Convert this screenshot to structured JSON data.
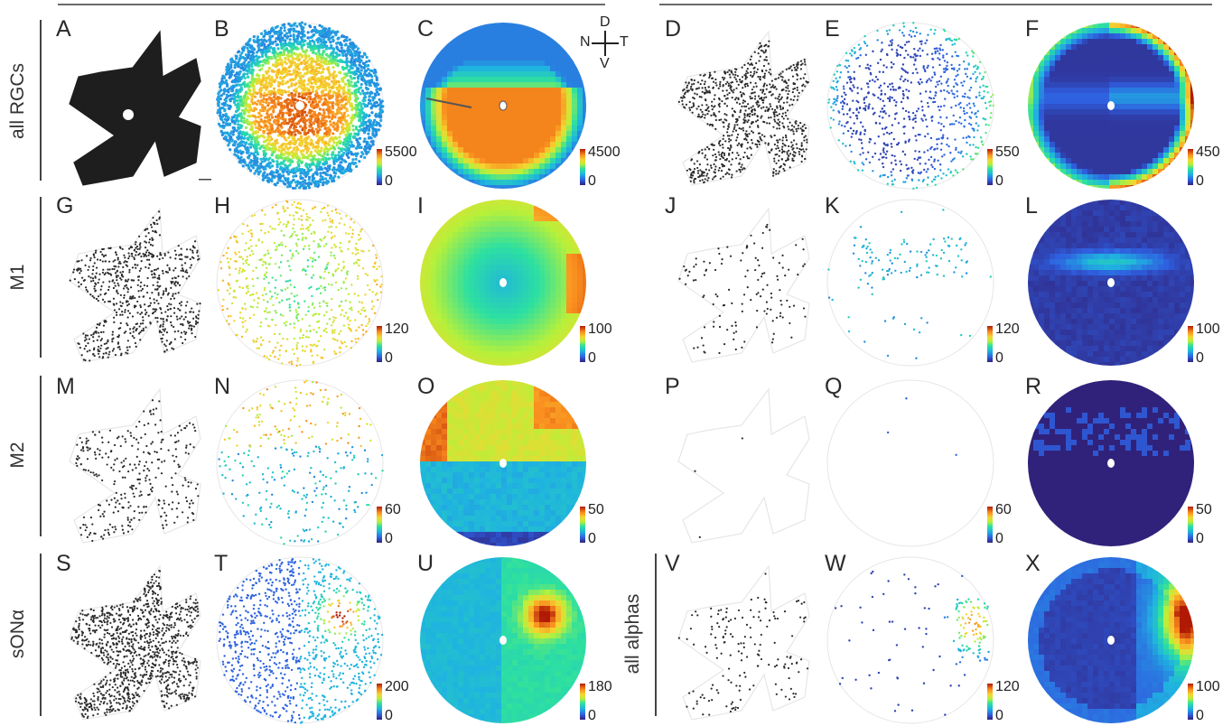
{
  "figure": {
    "row_labels": [
      "all RGCs",
      "M1",
      "M2",
      "sONα"
    ],
    "right_row_label": "all alphas",
    "compass": {
      "dorsal": "D",
      "nasal": "N",
      "temporal": "T",
      "ventral": "V"
    }
  },
  "colors": {
    "line": "#6a6a6a",
    "dot": "#2b2b2b",
    "outline": "#e6e6e6",
    "jet_low": "#30227a",
    "jet_high": "#b01a05"
  },
  "chart_data": [
    {
      "panel": "A",
      "row": "all RGCs",
      "type": "scatter",
      "kind": "retina-flatmount-dots",
      "density": "very high"
    },
    {
      "panel": "B",
      "row": "all RGCs",
      "type": "scatter",
      "kind": "colored-dot-disc",
      "colorbar": {
        "min": "0",
        "max": "5500"
      }
    },
    {
      "panel": "C",
      "row": "all RGCs",
      "type": "heatmap",
      "kind": "density-disc",
      "colorbar": {
        "min": "0",
        "max": "4500"
      }
    },
    {
      "panel": "D",
      "row": "all RGCs",
      "type": "scatter",
      "kind": "retina-flatmount-dots",
      "density": "medium"
    },
    {
      "panel": "E",
      "row": "all RGCs",
      "type": "scatter",
      "kind": "colored-dot-disc",
      "colorbar": {
        "min": "0",
        "max": "550"
      }
    },
    {
      "panel": "F",
      "row": "all RGCs",
      "type": "heatmap",
      "kind": "density-disc",
      "colorbar": {
        "min": "0",
        "max": "450"
      }
    },
    {
      "panel": "G",
      "row": "M1",
      "type": "scatter",
      "kind": "retina-flatmount-dots",
      "density": "medium"
    },
    {
      "panel": "H",
      "row": "M1",
      "type": "scatter",
      "kind": "colored-dot-disc",
      "colorbar": {
        "min": "0",
        "max": "120"
      }
    },
    {
      "panel": "I",
      "row": "M1",
      "type": "heatmap",
      "kind": "density-disc",
      "colorbar": {
        "min": "0",
        "max": "100"
      }
    },
    {
      "panel": "J",
      "row": "M1",
      "type": "scatter",
      "kind": "retina-flatmount-dots",
      "density": "low"
    },
    {
      "panel": "K",
      "row": "M1",
      "type": "scatter",
      "kind": "colored-dot-disc",
      "colorbar": {
        "min": "0",
        "max": "120"
      }
    },
    {
      "panel": "L",
      "row": "M1",
      "type": "heatmap",
      "kind": "density-disc",
      "colorbar": {
        "min": "0",
        "max": "100"
      }
    },
    {
      "panel": "M",
      "row": "M2",
      "type": "scatter",
      "kind": "retina-flatmount-dots",
      "density": "low-medium"
    },
    {
      "panel": "N",
      "row": "M2",
      "type": "scatter",
      "kind": "colored-dot-disc",
      "colorbar": {
        "min": "0",
        "max": "60"
      }
    },
    {
      "panel": "O",
      "row": "M2",
      "type": "heatmap",
      "kind": "density-disc",
      "colorbar": {
        "min": "0",
        "max": "50"
      }
    },
    {
      "panel": "P",
      "row": "M2",
      "type": "scatter",
      "kind": "retina-flatmount-dots",
      "density": "3 cells"
    },
    {
      "panel": "Q",
      "row": "M2",
      "type": "scatter",
      "kind": "colored-dot-disc",
      "colorbar": {
        "min": "0",
        "max": "60"
      }
    },
    {
      "panel": "R",
      "row": "M2",
      "type": "heatmap",
      "kind": "density-disc",
      "colorbar": {
        "min": "0",
        "max": "50"
      }
    },
    {
      "panel": "S",
      "row": "sONα",
      "type": "scatter",
      "kind": "retina-flatmount-dots",
      "density": "high"
    },
    {
      "panel": "T",
      "row": "sONα",
      "type": "scatter",
      "kind": "colored-dot-disc",
      "colorbar": {
        "min": "0",
        "max": "200"
      }
    },
    {
      "panel": "U",
      "row": "sONα",
      "type": "heatmap",
      "kind": "density-disc",
      "colorbar": {
        "min": "0",
        "max": "180"
      }
    },
    {
      "panel": "V",
      "row": "all alphas",
      "type": "scatter",
      "kind": "retina-flatmount-dots",
      "density": "low"
    },
    {
      "panel": "W",
      "row": "all alphas",
      "type": "scatter",
      "kind": "colored-dot-disc",
      "colorbar": {
        "min": "0",
        "max": "120"
      }
    },
    {
      "panel": "X",
      "row": "all alphas",
      "type": "heatmap",
      "kind": "density-disc",
      "colorbar": {
        "min": "0",
        "max": "100"
      }
    }
  ]
}
